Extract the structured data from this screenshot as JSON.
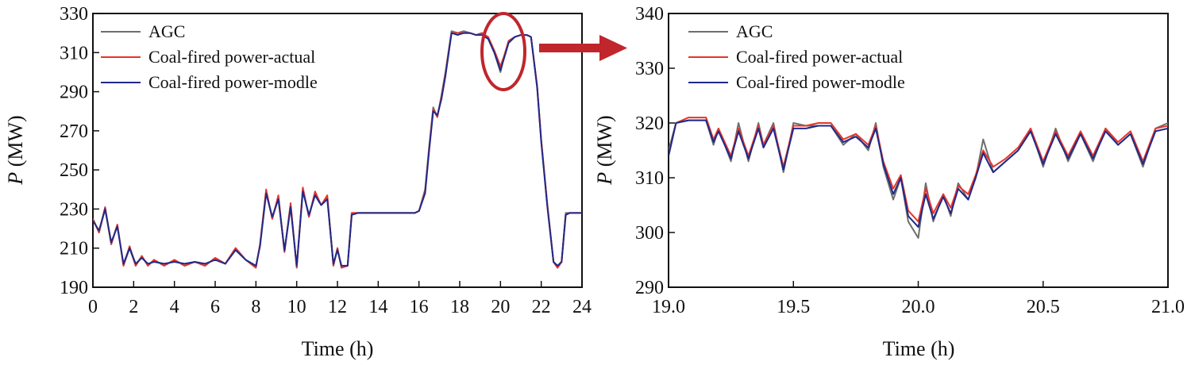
{
  "colors": {
    "agc": "#6e6e6e",
    "actual": "#e8342a",
    "model": "#1f2a8a",
    "annotation": "#c0262c",
    "axis": "#111111"
  },
  "chart_data": [
    {
      "type": "line",
      "title": "",
      "xlabel": "Time (h)",
      "ylabel_italic": "P",
      "ylabel_unit": " (MW)",
      "xlim": [
        0,
        24
      ],
      "ylim": [
        190,
        330
      ],
      "xticks": [
        0,
        2,
        4,
        6,
        8,
        10,
        12,
        14,
        16,
        18,
        20,
        22,
        24
      ],
      "xtick_labels": [
        "0",
        "2",
        "4",
        "6",
        "8",
        "10",
        "12",
        "14",
        "16",
        "18",
        "20",
        "22",
        "24"
      ],
      "yticks": [
        190,
        210,
        230,
        250,
        270,
        290,
        310,
        330
      ],
      "ytick_labels": [
        "190",
        "210",
        "230",
        "250",
        "270",
        "290",
        "310",
        "330"
      ],
      "legend_position": "top-left",
      "grid": false,
      "x": [
        0,
        0.3,
        0.6,
        0.9,
        1.2,
        1.5,
        1.8,
        2.1,
        2.4,
        2.7,
        3.0,
        3.5,
        4.0,
        4.5,
        5.0,
        5.5,
        6.0,
        6.5,
        7.0,
        7.5,
        8.0,
        8.2,
        8.5,
        8.8,
        9.1,
        9.4,
        9.7,
        10.0,
        10.3,
        10.6,
        10.9,
        11.2,
        11.5,
        11.8,
        12.0,
        12.2,
        12.5,
        12.7,
        13.0,
        14.0,
        15.0,
        15.8,
        16.0,
        16.3,
        16.5,
        16.7,
        16.9,
        17.1,
        17.3,
        17.6,
        17.9,
        18.2,
        18.5,
        18.8,
        19.1,
        19.4,
        19.7,
        20.0,
        20.2,
        20.4,
        20.7,
        21.0,
        21.3,
        21.5,
        21.8,
        22.0,
        22.3,
        22.6,
        22.8,
        23.0,
        23.2,
        23.4,
        23.7,
        24.0
      ],
      "series": [
        {
          "name": "AGC",
          "values": [
            225,
            218,
            230,
            212,
            222,
            201,
            210,
            201,
            206,
            201,
            204,
            201,
            204,
            201,
            203,
            201,
            205,
            202,
            210,
            204,
            200,
            212,
            239,
            225,
            236,
            208,
            232,
            200,
            240,
            226,
            238,
            232,
            236,
            201,
            210,
            200,
            201,
            228,
            228,
            228,
            228,
            228,
            229,
            240,
            262,
            282,
            277,
            288,
            300,
            321,
            320,
            321,
            320,
            319,
            320,
            317,
            310,
            300,
            309,
            316,
            318,
            319,
            319,
            318,
            293,
            265,
            232,
            203,
            200,
            203,
            228,
            228,
            228,
            228
          ]
        },
        {
          "name": "Coal-fired power-actual",
          "values": [
            225,
            218,
            231,
            212,
            222,
            201,
            211,
            201,
            206,
            201,
            204,
            201,
            204,
            201,
            203,
            201,
            205,
            202,
            210,
            204,
            200,
            212,
            240,
            225,
            237,
            208,
            233,
            200,
            241,
            226,
            239,
            232,
            237,
            201,
            210,
            200,
            201,
            228,
            228,
            228,
            228,
            228,
            229,
            239,
            261,
            281,
            277,
            287,
            299,
            320,
            320,
            320,
            320,
            319,
            320,
            318,
            311,
            303,
            309,
            316,
            318,
            319,
            319,
            318,
            293,
            265,
            232,
            203,
            200,
            203,
            227,
            228,
            228,
            228
          ]
        },
        {
          "name": "Coal-fired power-modle",
          "values": [
            224,
            219,
            230,
            213,
            221,
            202,
            210,
            202,
            205,
            202,
            203,
            202,
            203,
            202,
            203,
            202,
            204,
            202,
            209,
            204,
            201,
            211,
            238,
            226,
            235,
            209,
            231,
            201,
            239,
            227,
            237,
            232,
            235,
            202,
            209,
            201,
            201,
            227,
            228,
            228,
            228,
            228,
            229,
            238,
            260,
            280,
            278,
            286,
            298,
            320,
            319,
            320,
            320,
            319,
            319,
            317,
            310,
            301,
            308,
            315,
            318,
            319,
            319,
            318,
            292,
            264,
            231,
            203,
            201,
            203,
            227,
            228,
            228,
            228
          ]
        }
      ]
    },
    {
      "type": "line",
      "title": "",
      "xlabel": "Time (h)",
      "ylabel_italic": "P",
      "ylabel_unit": " (MW)",
      "xlim": [
        19.0,
        21.0
      ],
      "ylim": [
        290,
        340
      ],
      "xticks": [
        19.0,
        19.5,
        20.0,
        20.5,
        21.0
      ],
      "xtick_labels": [
        "19.0",
        "19.5",
        "20.0",
        "20.5",
        "21.0"
      ],
      "yticks": [
        290,
        300,
        310,
        320,
        330,
        340
      ],
      "ytick_labels": [
        "290",
        "300",
        "310",
        "320",
        "330",
        "340"
      ],
      "legend_position": "top-left",
      "grid": false,
      "x": [
        19.0,
        19.03,
        19.08,
        19.15,
        19.18,
        19.2,
        19.25,
        19.28,
        19.32,
        19.36,
        19.38,
        19.42,
        19.46,
        19.5,
        19.55,
        19.6,
        19.65,
        19.7,
        19.75,
        19.8,
        19.83,
        19.86,
        19.9,
        19.93,
        19.96,
        20.0,
        20.03,
        20.06,
        20.1,
        20.13,
        20.16,
        20.2,
        20.23,
        20.26,
        20.3,
        20.35,
        20.4,
        20.45,
        20.5,
        20.55,
        20.6,
        20.65,
        20.7,
        20.75,
        20.8,
        20.85,
        20.9,
        20.95,
        21.0
      ],
      "series": [
        {
          "name": "AGC",
          "values": [
            315,
            320,
            320.5,
            320.5,
            316,
            319,
            313,
            320,
            313,
            320,
            316,
            320,
            311,
            320,
            319.5,
            319.5,
            319.5,
            316,
            318,
            315,
            320,
            312,
            306,
            310,
            302,
            299,
            309,
            302,
            307,
            303,
            309,
            306,
            310,
            317,
            311,
            313,
            315,
            319,
            312,
            319,
            313,
            318,
            313,
            319,
            316,
            318,
            312,
            319,
            320
          ]
        },
        {
          "name": "Coal-fired power-actual",
          "values": [
            314,
            320,
            321,
            321,
            317,
            319,
            314,
            319,
            314,
            319.5,
            316,
            319.5,
            312,
            319.5,
            319.5,
            320,
            320,
            317,
            318,
            316,
            319.5,
            313,
            308,
            310.5,
            304,
            302,
            308,
            303.5,
            307,
            304.5,
            308.5,
            307,
            310.5,
            315,
            312,
            313.5,
            315.5,
            319,
            313,
            318.5,
            314,
            318.5,
            314,
            319,
            316.5,
            318.5,
            313,
            319,
            319.5
          ]
        },
        {
          "name": "Coal-fired power-modle",
          "values": [
            314,
            320,
            320.5,
            320.5,
            316.5,
            318.5,
            313.5,
            318.5,
            313.5,
            319,
            315.5,
            319,
            311.5,
            319,
            319,
            319.5,
            319.5,
            316.5,
            317.5,
            315.5,
            319,
            312.5,
            307,
            310,
            303,
            301,
            307,
            302.5,
            306.5,
            303.5,
            308,
            306,
            310,
            314.5,
            311,
            313,
            315,
            318.5,
            312.5,
            318,
            313.5,
            318,
            313.5,
            318.5,
            316,
            318,
            312.5,
            318.5,
            319
          ]
        }
      ]
    }
  ]
}
